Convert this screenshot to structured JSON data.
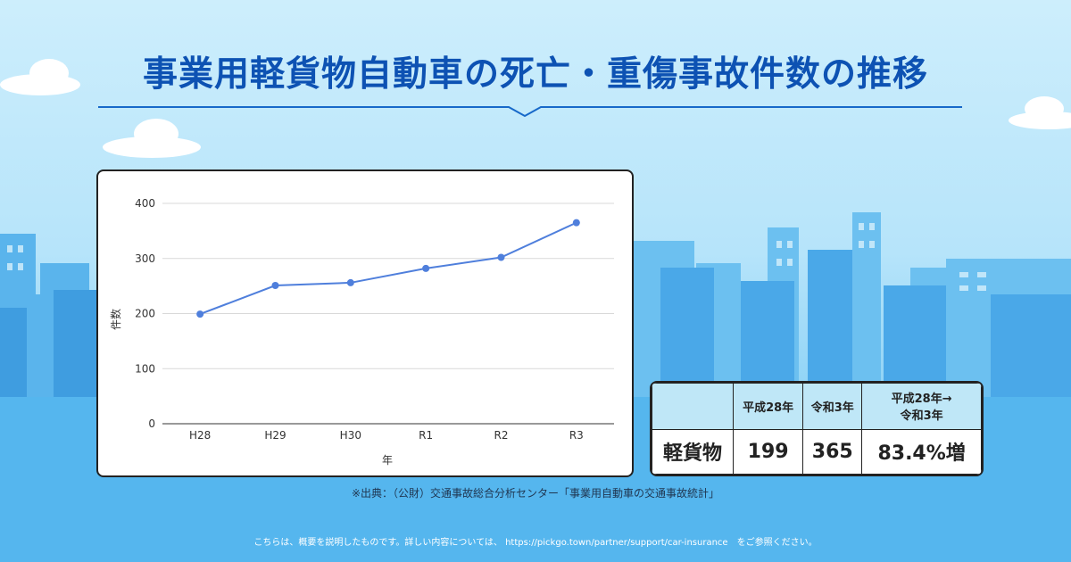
{
  "title": "事業用軽貨物自動車の死亡・重傷事故件数の推移",
  "chart_data": {
    "type": "line",
    "categories": [
      "H28",
      "H29",
      "H30",
      "R1",
      "R2",
      "R3"
    ],
    "values": [
      199,
      251,
      256,
      282,
      302,
      365
    ],
    "xlabel": "年",
    "ylabel": "件数",
    "ylim": [
      0,
      400
    ],
    "yticks": [
      0,
      100,
      200,
      300,
      400
    ],
    "grid": true,
    "line_color": "#4f7fdc"
  },
  "table": {
    "headers": [
      "",
      "平成28年",
      "令和3年",
      "平成28年→\n令和3年"
    ],
    "row_label": "軽貨物",
    "values": [
      "199",
      "365"
    ],
    "increase": "83.4%増",
    "increase_color": "#e53935"
  },
  "source": "※出典：（公財）交通事故総合分析センター「事業用自動車の交通事故統計」",
  "footer": "こちらは、概要を説明したものです。詳しい内容については、 https://pickgo.town/partner/support/car-insurance　をご参照ください。",
  "colors": {
    "title": "#0d52b3",
    "sky": "#b6e4fa",
    "buildings": "#4aa8e8"
  }
}
